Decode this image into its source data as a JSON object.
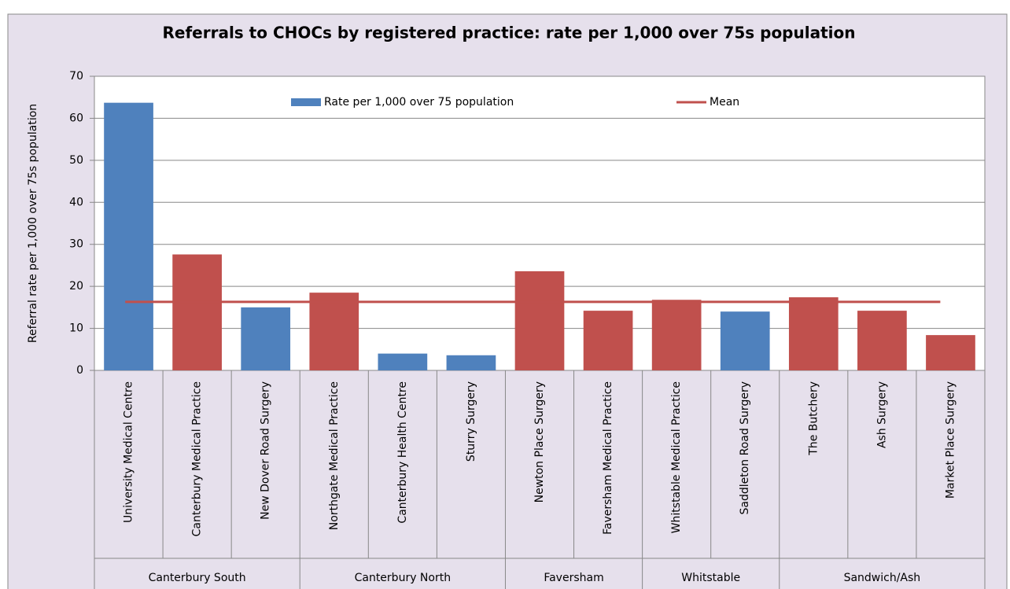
{
  "chart_data": {
    "type": "bar",
    "title": "Referrals to CHOCs by registered practice: rate per 1,000 over 75s population",
    "y_label": "Referral rate per 1,000 over 75s population",
    "groups": [
      {
        "name": "Canterbury South",
        "categories": [
          "University Medical Centre",
          "Canterbury Medical Practice",
          "New Dover Road Surgery"
        ]
      },
      {
        "name": "Canterbury North",
        "categories": [
          "Northgate Medical Practice",
          "Canterbury Health Centre",
          "Sturry Surgery"
        ]
      },
      {
        "name": "Faversham",
        "categories": [
          "Newton Place Surgery",
          "Faversham Medical Practice"
        ]
      },
      {
        "name": "Whitstable",
        "categories": [
          "Whitstable Medical Practice",
          "Saddleton Road Surgery"
        ]
      },
      {
        "name": "Sandwich/Ash",
        "categories": [
          "The Butchery",
          "Ash Surgery",
          "Market Place Surgery"
        ]
      }
    ],
    "series": [
      {
        "name": "Rate per 1,000 over 75 population",
        "color": "#4f81bd",
        "values": [
          63.7,
          27.6,
          15.0,
          18.5,
          4.0,
          3.6,
          23.6,
          14.2,
          16.8,
          14.0,
          17.4,
          14.2,
          8.4
        ],
        "colors": [
          "#4f81bd",
          "#c0504d",
          "#4f81bd",
          "#c0504d",
          "#4f81bd",
          "#4f81bd",
          "#c0504d",
          "#c0504d",
          "#c0504d",
          "#4f81bd",
          "#c0504d",
          "#c0504d",
          "#c0504d"
        ]
      }
    ],
    "mean": {
      "name": "Mean",
      "color": "#c0504d",
      "value": 16.3
    },
    "ylim": [
      0,
      70
    ],
    "yticks": [
      0,
      10,
      20,
      30,
      40,
      50,
      60,
      70
    ],
    "grid": true
  }
}
